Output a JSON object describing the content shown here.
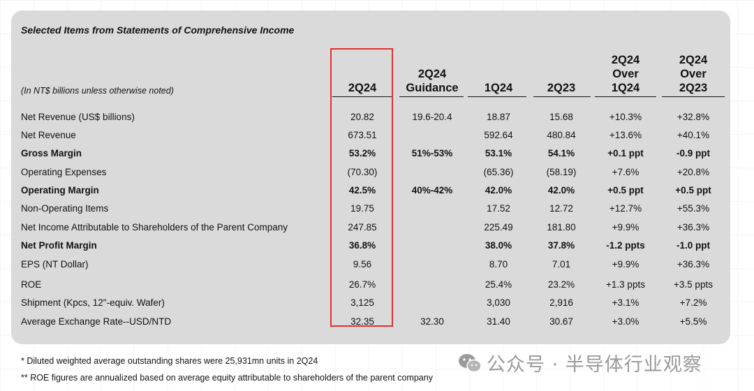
{
  "title": "Selected Items from Statements of Comprehensive Income",
  "units_note": "(In NT$ billions unless otherwise noted)",
  "columns": [
    {
      "lines": [
        "2Q24"
      ]
    },
    {
      "lines": [
        "2Q24",
        "Guidance"
      ]
    },
    {
      "lines": [
        "1Q24"
      ]
    },
    {
      "lines": [
        "2Q23"
      ]
    },
    {
      "lines": [
        "2Q24",
        "Over",
        "1Q24"
      ]
    },
    {
      "lines": [
        "2Q24",
        "Over",
        "2Q23"
      ]
    }
  ],
  "rows": [
    {
      "label": "Net Revenue (US$ billions)",
      "bold": false,
      "values": [
        "20.82",
        "19.6-20.4",
        "18.87",
        "15.68",
        "+10.3%",
        "+32.8%"
      ]
    },
    {
      "label": "Net Revenue",
      "bold": false,
      "values": [
        "673.51",
        "",
        "592.64",
        "480.84",
        "+13.6%",
        "+40.1%"
      ]
    },
    {
      "label": "Gross Margin",
      "bold": true,
      "values": [
        "53.2%",
        "51%-53%",
        "53.1%",
        "54.1%",
        "+0.1 ppt",
        "-0.9 ppt"
      ]
    },
    {
      "label": "Operating Expenses",
      "bold": false,
      "values": [
        "(70.30)",
        "",
        "(65.36)",
        "(58.19)",
        "+7.6%",
        "+20.8%"
      ]
    },
    {
      "label": "Operating Margin",
      "bold": true,
      "values": [
        "42.5%",
        "40%-42%",
        "42.0%",
        "42.0%",
        "+0.5 ppt",
        "+0.5 ppt"
      ]
    },
    {
      "label": "Non-Operating Items",
      "bold": false,
      "values": [
        "19.75",
        "",
        "17.52",
        "12.72",
        "+12.7%",
        "+55.3%"
      ]
    },
    {
      "label": "Net Income Attributable to Shareholders of the Parent Company",
      "bold": false,
      "values": [
        "247.85",
        "",
        "225.49",
        "181.80",
        "+9.9%",
        "+36.3%"
      ]
    },
    {
      "label": "Net Profit Margin",
      "bold": true,
      "values": [
        "36.8%",
        "",
        "38.0%",
        "37.8%",
        "-1.2 ppts",
        "-1.0 ppt"
      ]
    },
    {
      "label": "EPS (NT Dollar)",
      "bold": false,
      "values": [
        "9.56",
        "",
        "8.70",
        "7.01",
        "+9.9%",
        "+36.3%"
      ]
    },
    {
      "label": "ROE",
      "bold": false,
      "values": [
        "26.7%",
        "",
        "25.4%",
        "23.2%",
        "+1.3 ppts",
        "+3.5 ppts"
      ]
    },
    {
      "label": "Shipment (Kpcs, 12\"-equiv. Wafer)",
      "bold": false,
      "values": [
        "3,125",
        "",
        "3,030",
        "2,916",
        "+3.1%",
        "+7.2%"
      ]
    },
    {
      "label": "Average Exchange Rate--USD/NTD",
      "bold": false,
      "values": [
        "32.35",
        "32.30",
        "31.40",
        "30.67",
        "+3.0%",
        "+5.5%"
      ]
    }
  ],
  "footnotes": [
    "*    Diluted weighted average outstanding shares were 25,931mn units in 2Q24",
    "**  ROE figures are annualized based on average equity attributable to shareholders of the parent company"
  ],
  "watermark": "公众号 · 半导体行业观察",
  "colors": {
    "panel": "#dadada",
    "highlight": "#e03030"
  }
}
